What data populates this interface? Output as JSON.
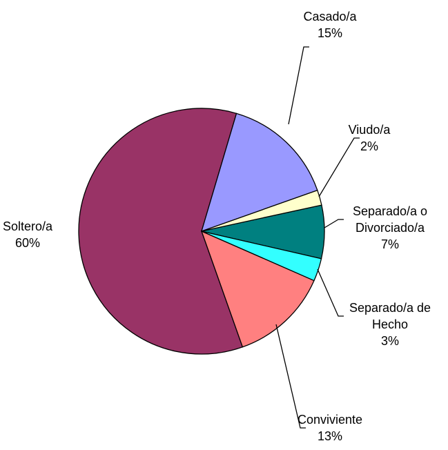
{
  "chart_data": {
    "type": "pie",
    "categories": [
      "Casado/a",
      "Viudo/a",
      "Separado/a o Divorciado/a",
      "Separado/a de Hecho",
      "Conviviente",
      "Soltero/a"
    ],
    "values": [
      15,
      2,
      7,
      3,
      13,
      60
    ],
    "value_labels": [
      "15%",
      "2%",
      "7%",
      "3%",
      "13%",
      "60%"
    ],
    "colors": [
      "#9999ff",
      "#ffffcc",
      "#008080",
      "#33ffff",
      "#ff8080",
      "#993366"
    ]
  }
}
